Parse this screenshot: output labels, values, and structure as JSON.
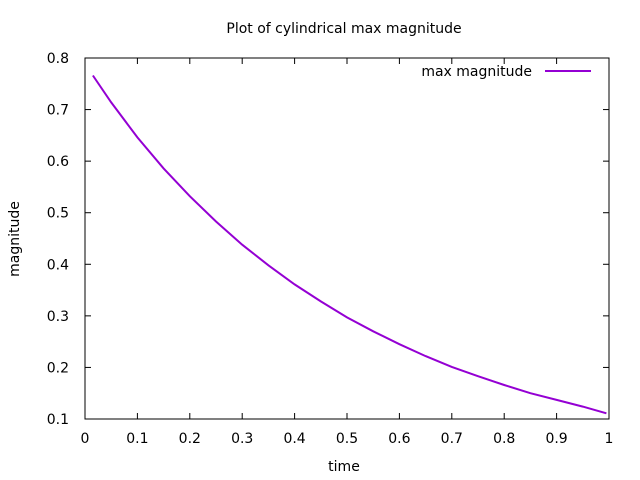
{
  "chart_data": {
    "type": "line",
    "title": "Plot of cylindrical max magnitude",
    "xlabel": "time",
    "ylabel": "magnitude",
    "xlim": [
      0,
      1
    ],
    "ylim": [
      0.1,
      0.8
    ],
    "xticks": [
      0,
      0.1,
      0.2,
      0.3,
      0.4,
      0.5,
      0.6,
      0.7,
      0.8,
      0.9,
      1
    ],
    "xtick_labels": [
      "0",
      "0.1",
      "0.2",
      "0.3",
      "0.4",
      "0.5",
      "0.6",
      "0.7",
      "0.8",
      "0.9",
      "1"
    ],
    "yticks": [
      0.1,
      0.2,
      0.3,
      0.4,
      0.5,
      0.6,
      0.7,
      0.8
    ],
    "ytick_labels": [
      "0.1",
      "0.2",
      "0.3",
      "0.4",
      "0.5",
      "0.6",
      "0.7",
      "0.8"
    ],
    "grid": false,
    "legend_position": "top-right",
    "series": [
      {
        "name": "max magnitude",
        "color": "#9400d3",
        "x": [
          0.015,
          0.05,
          0.1,
          0.15,
          0.2,
          0.25,
          0.3,
          0.35,
          0.4,
          0.45,
          0.5,
          0.55,
          0.6,
          0.65,
          0.7,
          0.75,
          0.8,
          0.85,
          0.9,
          0.95,
          0.995
        ],
        "y": [
          0.766,
          0.714,
          0.646,
          0.586,
          0.532,
          0.483,
          0.438,
          0.398,
          0.361,
          0.328,
          0.297,
          0.27,
          0.245,
          0.222,
          0.201,
          0.183,
          0.166,
          0.15,
          0.137,
          0.124,
          0.111
        ]
      }
    ]
  }
}
